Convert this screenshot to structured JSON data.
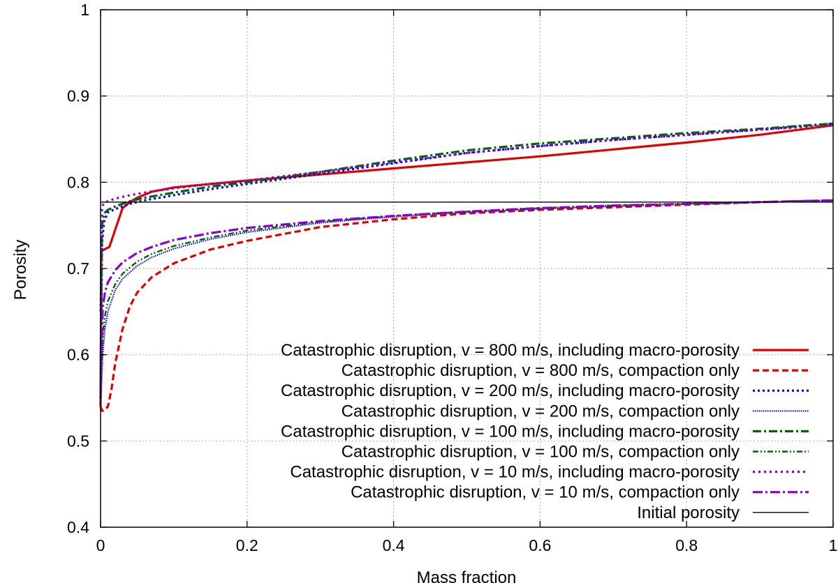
{
  "chart_data": {
    "type": "line",
    "title": "",
    "xlabel": "Mass fraction",
    "ylabel": "Porosity",
    "xlim": [
      0,
      1
    ],
    "ylim": [
      0.4,
      1
    ],
    "xticks": [
      0,
      0.2,
      0.4,
      0.6,
      0.8,
      1
    ],
    "xtick_labels": [
      "0",
      "0.2",
      "0.4",
      "0.6",
      "0.8",
      "1"
    ],
    "yticks": [
      0.4,
      0.5,
      0.6,
      0.7,
      0.8,
      0.9,
      1
    ],
    "ytick_labels": [
      "0.4",
      "0.5",
      "0.6",
      "0.7",
      "0.8",
      "0.9",
      "1"
    ],
    "grid": true,
    "legend_position": "bottom-right",
    "series": [
      {
        "name": "Catastrophic disruption, v = 800 m/s, including macro-porosity",
        "color": "#e00000",
        "dash": "solid",
        "x": [
          0.0,
          0.001,
          0.005,
          0.012,
          0.02,
          0.03,
          0.04,
          0.05,
          0.07,
          0.1,
          0.15,
          0.2,
          0.3,
          0.4,
          0.5,
          0.6,
          0.7,
          0.8,
          0.9,
          1.0
        ],
        "y": [
          0.54,
          0.72,
          0.722,
          0.725,
          0.745,
          0.77,
          0.777,
          0.782,
          0.789,
          0.794,
          0.798,
          0.802,
          0.809,
          0.816,
          0.823,
          0.83,
          0.838,
          0.846,
          0.855,
          0.866
        ]
      },
      {
        "name": "Catastrophic disruption, v = 800 m/s, compaction only",
        "color": "#e00000",
        "dash": "dashed",
        "x": [
          0.0,
          0.002,
          0.005,
          0.01,
          0.015,
          0.02,
          0.03,
          0.04,
          0.05,
          0.07,
          0.1,
          0.15,
          0.2,
          0.3,
          0.4,
          0.5,
          0.6,
          0.7,
          0.8,
          0.9,
          1.0
        ],
        "y": [
          0.54,
          0.535,
          0.535,
          0.54,
          0.56,
          0.59,
          0.63,
          0.656,
          0.672,
          0.69,
          0.706,
          0.722,
          0.732,
          0.748,
          0.757,
          0.764,
          0.768,
          0.771,
          0.774,
          0.777,
          0.779
        ]
      },
      {
        "name": "Catastrophic disruption, v = 200 m/s, including macro-porosity",
        "color": "#0000e0",
        "dash": "dotted",
        "x": [
          0.0,
          0.002,
          0.005,
          0.01,
          0.02,
          0.04,
          0.06,
          0.1,
          0.15,
          0.2,
          0.3,
          0.4,
          0.5,
          0.6,
          0.7,
          0.8,
          0.9,
          1.0
        ],
        "y": [
          0.55,
          0.73,
          0.755,
          0.765,
          0.769,
          0.775,
          0.779,
          0.785,
          0.792,
          0.798,
          0.81,
          0.822,
          0.834,
          0.842,
          0.849,
          0.855,
          0.861,
          0.868
        ]
      },
      {
        "name": "Catastrophic disruption, v = 200 m/s, compaction only",
        "color": "#0000e0",
        "dash": "finedot",
        "x": [
          0.0,
          0.003,
          0.006,
          0.01,
          0.02,
          0.03,
          0.05,
          0.07,
          0.1,
          0.15,
          0.2,
          0.3,
          0.4,
          0.5,
          0.6,
          0.7,
          0.8,
          0.9,
          1.0
        ],
        "y": [
          0.54,
          0.6,
          0.63,
          0.65,
          0.675,
          0.688,
          0.703,
          0.713,
          0.723,
          0.734,
          0.742,
          0.753,
          0.76,
          0.765,
          0.769,
          0.772,
          0.775,
          0.777,
          0.779
        ]
      },
      {
        "name": "Catastrophic disruption, v = 100 m/s, including macro-porosity",
        "color": "#006400",
        "dash": "dashdot",
        "x": [
          0.0,
          0.002,
          0.005,
          0.01,
          0.02,
          0.04,
          0.06,
          0.1,
          0.15,
          0.2,
          0.3,
          0.4,
          0.5,
          0.6,
          0.7,
          0.8,
          0.9,
          1.0
        ],
        "y": [
          0.56,
          0.75,
          0.764,
          0.768,
          0.772,
          0.778,
          0.782,
          0.788,
          0.795,
          0.8,
          0.812,
          0.825,
          0.837,
          0.845,
          0.851,
          0.857,
          0.862,
          0.868
        ]
      },
      {
        "name": "Catastrophic disruption, v = 100 m/s, compaction only",
        "color": "#006400",
        "dash": "dashdotdot",
        "x": [
          0.0,
          0.003,
          0.006,
          0.01,
          0.02,
          0.03,
          0.05,
          0.07,
          0.1,
          0.15,
          0.2,
          0.3,
          0.4,
          0.5,
          0.6,
          0.7,
          0.8,
          0.9,
          1.0
        ],
        "y": [
          0.56,
          0.62,
          0.645,
          0.662,
          0.682,
          0.694,
          0.708,
          0.717,
          0.726,
          0.736,
          0.744,
          0.754,
          0.761,
          0.766,
          0.77,
          0.773,
          0.775,
          0.777,
          0.779
        ]
      },
      {
        "name": "Catastrophic disruption, v = 10 m/s, including macro-porosity",
        "color": "#8b00d0",
        "dash": "dotdense",
        "x": [
          0.0,
          0.002,
          0.005,
          0.01,
          0.02,
          0.04,
          0.06,
          0.1,
          0.15,
          0.2,
          0.3,
          0.4,
          0.5,
          0.6,
          0.7,
          0.8,
          0.9,
          1.0
        ],
        "y": [
          0.65,
          0.772,
          0.776,
          0.778,
          0.781,
          0.785,
          0.788,
          0.793,
          0.798,
          0.802,
          0.812,
          0.823,
          0.834,
          0.842,
          0.849,
          0.855,
          0.861,
          0.866
        ]
      },
      {
        "name": "Catastrophic disruption, v = 10 m/s, compaction only",
        "color": "#8b00d0",
        "dash": "longdashdot",
        "x": [
          0.0,
          0.003,
          0.006,
          0.01,
          0.02,
          0.03,
          0.05,
          0.07,
          0.1,
          0.15,
          0.2,
          0.3,
          0.4,
          0.5,
          0.6,
          0.7,
          0.8,
          0.9,
          1.0
        ],
        "y": [
          0.56,
          0.655,
          0.672,
          0.684,
          0.698,
          0.707,
          0.718,
          0.725,
          0.733,
          0.741,
          0.747,
          0.755,
          0.761,
          0.766,
          0.77,
          0.773,
          0.775,
          0.777,
          0.779
        ]
      },
      {
        "name": "Initial porosity",
        "color": "#000000",
        "dash": "thin",
        "x": [
          0.0,
          1.0
        ],
        "y": [
          0.777,
          0.777
        ]
      }
    ]
  }
}
